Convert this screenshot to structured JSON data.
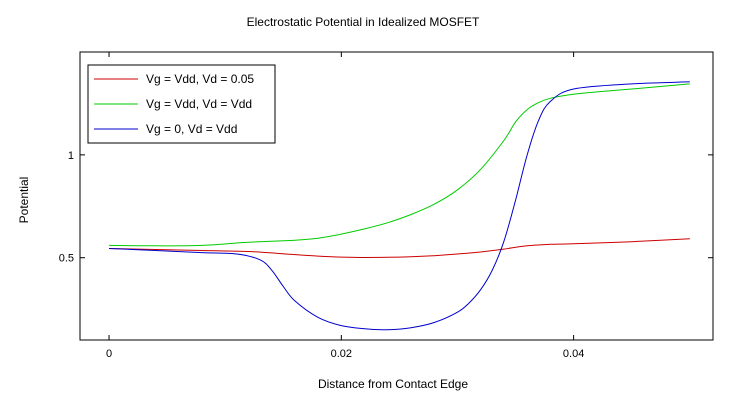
{
  "chart_data": {
    "type": "line",
    "title": "Electrostatic Potential in Idealized MOSFET",
    "xlabel": "Distance from Contact Edge",
    "ylabel": "Potential",
    "xlim": [
      -0.0025,
      0.052
    ],
    "ylim": [
      0.1,
      1.5
    ],
    "x_ticks": [
      0,
      0.02,
      0.04
    ],
    "x_tick_labels": [
      "0",
      "0.02",
      "0.04"
    ],
    "y_ticks": [
      0.5,
      1
    ],
    "y_tick_labels": [
      "0.5",
      "1"
    ],
    "grid": false,
    "legend_position": "top-left",
    "series": [
      {
        "name": "Vg = Vdd, Vd = 0.05",
        "color": "#cc0000",
        "x": [
          0,
          0.004,
          0.008,
          0.012,
          0.016,
          0.018,
          0.02,
          0.022,
          0.024,
          0.026,
          0.028,
          0.03,
          0.032,
          0.034,
          0.036,
          0.038,
          0.04,
          0.045,
          0.05
        ],
        "y": [
          0.545,
          0.54,
          0.535,
          0.53,
          0.515,
          0.508,
          0.503,
          0.501,
          0.502,
          0.505,
          0.51,
          0.518,
          0.528,
          0.542,
          0.558,
          0.565,
          0.568,
          0.578,
          0.592
        ]
      },
      {
        "name": "Vg = Vdd, Vd = Vdd",
        "color": "#00cc00",
        "x": [
          0,
          0.004,
          0.008,
          0.012,
          0.016,
          0.018,
          0.02,
          0.022,
          0.024,
          0.026,
          0.028,
          0.03,
          0.032,
          0.034,
          0.035,
          0.036,
          0.037,
          0.038,
          0.04,
          0.045,
          0.05
        ],
        "y": [
          0.56,
          0.558,
          0.56,
          0.575,
          0.585,
          0.595,
          0.615,
          0.64,
          0.67,
          0.71,
          0.76,
          0.83,
          0.93,
          1.07,
          1.16,
          1.22,
          1.255,
          1.275,
          1.295,
          1.32,
          1.345
        ]
      },
      {
        "name": "Vg = 0, Vd = Vdd",
        "color": "#0000cc",
        "x": [
          0,
          0.004,
          0.008,
          0.011,
          0.013,
          0.014,
          0.015,
          0.016,
          0.018,
          0.02,
          0.022,
          0.024,
          0.026,
          0.028,
          0.03,
          0.031,
          0.032,
          0.033,
          0.034,
          0.035,
          0.036,
          0.037,
          0.038,
          0.04,
          0.045,
          0.05
        ],
        "y": [
          0.545,
          0.535,
          0.525,
          0.518,
          0.49,
          0.44,
          0.36,
          0.29,
          0.21,
          0.17,
          0.155,
          0.15,
          0.16,
          0.185,
          0.235,
          0.28,
          0.345,
          0.44,
          0.58,
          0.78,
          1.0,
          1.17,
          1.26,
          1.32,
          1.345,
          1.355
        ]
      }
    ]
  }
}
